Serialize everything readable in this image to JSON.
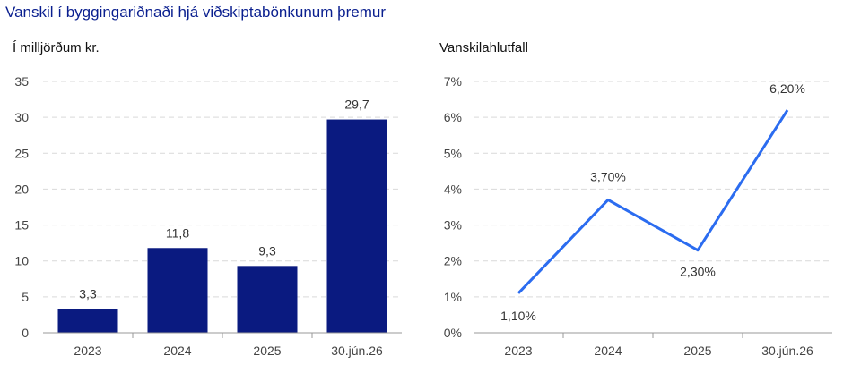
{
  "title": "Vanskil í byggingariðnaði hjá viðskiptabönkunum þremur",
  "colors": {
    "title": "#0a1f8f",
    "bar": "#0a1a80",
    "line": "#2b6cf0",
    "grid": "#d9d9d9"
  },
  "chart_data": [
    {
      "type": "bar",
      "ylabel": "Í milljörðum kr.",
      "categories": [
        "2023",
        "2024",
        "2025",
        "30.jún.26"
      ],
      "values": [
        3.3,
        11.8,
        9.3,
        29.7
      ],
      "value_labels": [
        "3,3",
        "11,8",
        "9,3",
        "29,7"
      ],
      "ylim": [
        0,
        35
      ],
      "yticks": [
        "0",
        "5",
        "10",
        "15",
        "20",
        "25",
        "30",
        "35"
      ],
      "grid": true
    },
    {
      "type": "line",
      "ylabel": "Vanskilahlutfall",
      "categories": [
        "2023",
        "2024",
        "2025",
        "30.jún.26"
      ],
      "values": [
        1.1,
        3.7,
        2.3,
        6.2
      ],
      "value_labels": [
        "1,10%",
        "3,70%",
        "2,30%",
        "6,20%"
      ],
      "ylim": [
        0,
        7
      ],
      "yticks": [
        "0%",
        "1%",
        "2%",
        "3%",
        "4%",
        "5%",
        "6%",
        "7%"
      ],
      "grid": true
    }
  ]
}
